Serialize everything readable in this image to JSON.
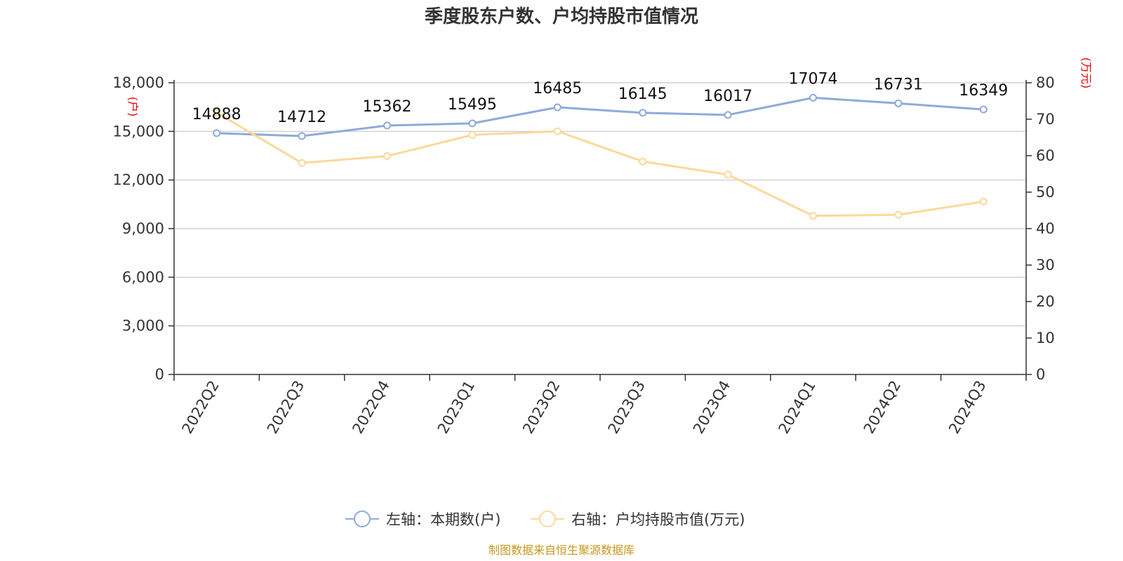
{
  "title": "季度股东户数、户均持股市值情况",
  "source": "制图数据来自恒生聚源数据库",
  "colors": {
    "left_series": "#8eaadb",
    "right_series": "#fcd89a",
    "unit_text": "#e60000",
    "source_text": "#c8961e",
    "grid": "#c8c8c8",
    "axis": "#333333"
  },
  "chart_data": {
    "type": "line",
    "title": "季度股东户数、户均持股市值情况",
    "categories": [
      "2022Q2",
      "2022Q3",
      "2022Q4",
      "2023Q1",
      "2023Q2",
      "2023Q3",
      "2023Q4",
      "2024Q1",
      "2024Q2",
      "2024Q3"
    ],
    "left_axis": {
      "unit": "(户)",
      "ylim": [
        0,
        18000
      ],
      "ticks": [
        0,
        3000,
        6000,
        9000,
        12000,
        15000,
        18000
      ],
      "tick_labels": [
        "0",
        "3,000",
        "6,000",
        "9,000",
        "12,000",
        "15,000",
        "18,000"
      ]
    },
    "right_axis": {
      "unit": "(万元)",
      "ylim": [
        0,
        80
      ],
      "ticks": [
        0,
        10,
        20,
        30,
        40,
        50,
        60,
        70,
        80
      ],
      "tick_labels": [
        "0",
        "10",
        "20",
        "30",
        "40",
        "50",
        "60",
        "70",
        "80"
      ]
    },
    "series": [
      {
        "name": "左轴：本期数(户)",
        "axis": "left",
        "values": [
          14888,
          14712,
          15362,
          15495,
          16485,
          16145,
          16017,
          17074,
          16731,
          16349
        ],
        "labels": [
          "14888",
          "14712",
          "15362",
          "15495",
          "16485",
          "16145",
          "16017",
          "17074",
          "16731",
          "16349"
        ]
      },
      {
        "name": "右轴：户均持股市值(万元)",
        "axis": "right",
        "values": [
          71.8,
          58.0,
          59.9,
          65.7,
          66.7,
          58.4,
          54.8,
          43.5,
          43.8,
          47.4
        ]
      }
    ],
    "grid": true,
    "legend_position": "bottom"
  }
}
